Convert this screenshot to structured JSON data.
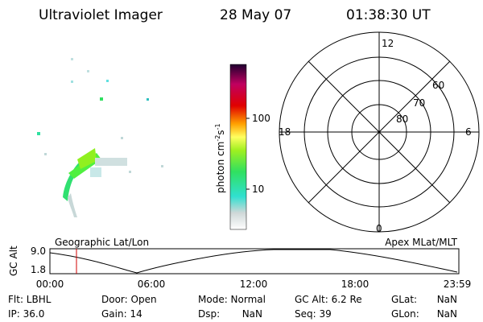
{
  "header": {
    "instrument": "Ultraviolet Imager",
    "date": "28 May 07",
    "time": "01:38:30 UT"
  },
  "colorbar": {
    "label_base": "photon cm",
    "label_exp1": "-2",
    "label_unit2": "s",
    "label_exp2": "-1",
    "ticks": [
      "100",
      "10"
    ]
  },
  "polar": {
    "mlt_labels": [
      "12",
      "18",
      "6",
      "0"
    ],
    "lat_labels": [
      "60",
      "70",
      "80"
    ]
  },
  "altitude": {
    "left_title": "Geographic Lat/Lon",
    "right_title": "Apex MLat/MLT",
    "axis_label": "GC Alt",
    "y_labels": [
      "9.0",
      "1.8"
    ],
    "time_labels": [
      "00:00",
      "06:00",
      "12:00",
      "18:00",
      "23:59"
    ]
  },
  "status": {
    "rows": [
      [
        "Flt: LBHL",
        "Door: Open",
        "Mode: Normal",
        "GC Alt: 6.2 Re",
        "GLat:",
        "NaN"
      ],
      [
        "IP: 36.0",
        "Gain: 14",
        "Dsp:",
        "NaN",
        "Seq: 39",
        "GLon:",
        "NaN"
      ]
    ]
  }
}
